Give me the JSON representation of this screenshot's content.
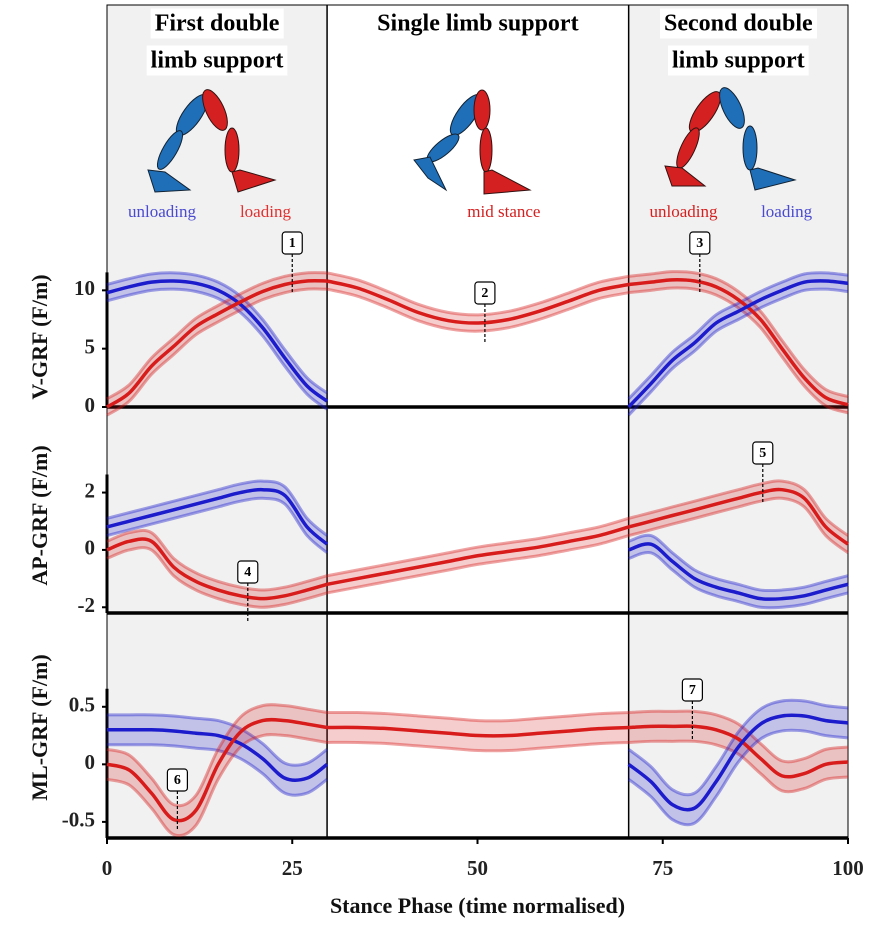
{
  "phases": [
    {
      "lines": [
        "First double",
        "limb support"
      ],
      "start": 0,
      "end": 29.7,
      "shaded": true,
      "notes": [
        {
          "text": "unloading",
          "color": "#4a4ad0"
        },
        {
          "text": "loading",
          "color": "#e03030"
        }
      ]
    },
    {
      "lines": [
        "Single limb support"
      ],
      "start": 29.7,
      "end": 70.4,
      "shaded": false,
      "notes": [
        {
          "text": "mid stance",
          "color": "#d42020"
        }
      ]
    },
    {
      "lines": [
        "Second double",
        "limb support"
      ],
      "start": 70.4,
      "end": 100,
      "shaded": true,
      "notes": [
        {
          "text": "unloading",
          "color": "#d42020"
        },
        {
          "text": "loading",
          "color": "#4a4ad0"
        }
      ]
    }
  ],
  "chart_data": [
    {
      "type": "line",
      "ylabel": "V-GRF (F/m)",
      "xlim": [
        0,
        100
      ],
      "ylim": [
        0,
        12
      ],
      "yticks": [
        0,
        5,
        10
      ],
      "annotations": [
        {
          "label": "1",
          "x": 25
        },
        {
          "label": "2",
          "x": 51
        },
        {
          "label": "3",
          "x": 80
        }
      ],
      "series": [
        {
          "color": "#1c1ccc",
          "band": 0.7,
          "x": [
            0,
            3,
            6,
            9,
            12,
            15,
            18,
            21,
            24,
            27,
            29.7
          ],
          "values": [
            9.8,
            10.3,
            10.7,
            10.8,
            10.6,
            10,
            8.8,
            6.8,
            4.2,
            1.8,
            0.5
          ]
        },
        {
          "color": "#d81c1c",
          "band": 0.7,
          "x": [
            0,
            3,
            6,
            9,
            12,
            15,
            18,
            21,
            24,
            27,
            29.7
          ],
          "values": [
            0,
            1.2,
            3.5,
            5.2,
            6.9,
            8,
            9,
            9.9,
            10.5,
            10.8,
            10.8
          ]
        },
        {
          "color": "#d81c1c",
          "band": 0.7,
          "x": [
            29.7,
            33.8,
            37.9,
            42,
            46.1,
            50.1,
            54.2,
            58.3,
            62.4,
            66.4,
            70.4
          ],
          "values": [
            10.8,
            10.2,
            9.2,
            8.1,
            7.4,
            7.2,
            7.5,
            8.2,
            9.1,
            10,
            10.5
          ]
        },
        {
          "color": "#d81c1c",
          "band": 0.7,
          "x": [
            70.4,
            73.4,
            76.3,
            79.3,
            82.2,
            85.2,
            88.2,
            91.1,
            94.1,
            97,
            100
          ],
          "values": [
            10.5,
            10.7,
            10.9,
            10.8,
            10.3,
            9.2,
            7.5,
            5,
            2.5,
            0.8,
            0.2
          ]
        },
        {
          "color": "#1c1ccc",
          "band": 0.7,
          "x": [
            70.4,
            73.4,
            76.3,
            79.3,
            82.2,
            85.2,
            88.2,
            91.1,
            94.1,
            97,
            100
          ],
          "values": [
            0,
            2,
            4,
            5.5,
            7.2,
            8.2,
            9.2,
            10,
            10.7,
            10.8,
            10.6
          ]
        }
      ]
    },
    {
      "type": "line",
      "ylabel": "AP-GRF (F/m)",
      "xlim": [
        0,
        100
      ],
      "ylim": [
        -2.2,
        4.6
      ],
      "yticks": [
        -2,
        0,
        2
      ],
      "annotations": [
        {
          "label": "4",
          "x": 19
        },
        {
          "label": "5",
          "x": 88.5
        }
      ],
      "series": [
        {
          "color": "#1c1ccc",
          "band": 0.3,
          "x": [
            0,
            3,
            6,
            9,
            12,
            15,
            18,
            21,
            24,
            27,
            29.7
          ],
          "values": [
            0.8,
            1,
            1.2,
            1.4,
            1.6,
            1.8,
            2,
            2.1,
            1.9,
            0.8,
            0.2
          ]
        },
        {
          "color": "#d81c1c",
          "band": 0.3,
          "x": [
            0,
            3,
            6,
            9,
            12,
            15,
            18,
            21,
            24,
            27,
            29.7
          ],
          "values": [
            0,
            0.3,
            0.3,
            -0.6,
            -1.1,
            -1.4,
            -1.6,
            -1.7,
            -1.6,
            -1.4,
            -1.2
          ]
        },
        {
          "color": "#d81c1c",
          "band": 0.3,
          "x": [
            29.7,
            33.8,
            37.9,
            42,
            46.1,
            50.1,
            54.2,
            58.3,
            62.4,
            66.4,
            70.4
          ],
          "values": [
            -1.2,
            -1,
            -0.8,
            -0.6,
            -0.4,
            -0.2,
            -0.05,
            0.1,
            0.3,
            0.5,
            0.8
          ]
        },
        {
          "color": "#d81c1c",
          "band": 0.3,
          "x": [
            70.4,
            73.4,
            76.3,
            79.3,
            82.2,
            85.2,
            88.2,
            91.1,
            94.1,
            97,
            100
          ],
          "values": [
            0.8,
            1,
            1.2,
            1.4,
            1.6,
            1.8,
            2,
            2.1,
            1.8,
            0.8,
            0.2
          ]
        },
        {
          "color": "#1c1ccc",
          "band": 0.3,
          "x": [
            70.4,
            73.4,
            76.3,
            79.3,
            82.2,
            85.2,
            88.2,
            91.1,
            94.1,
            97,
            100
          ],
          "values": [
            0,
            0.2,
            -0.4,
            -1,
            -1.3,
            -1.5,
            -1.7,
            -1.7,
            -1.6,
            -1.4,
            -1.2
          ]
        }
      ]
    },
    {
      "type": "line",
      "ylabel": "ML-GRF (F/m)",
      "xlim": [
        0,
        100
      ],
      "ylim": [
        -0.64,
        1.28
      ],
      "yticks": [
        -0.5,
        0,
        0.5
      ],
      "xticks": [
        0,
        25,
        50,
        75,
        100
      ],
      "xlabel": "Stance Phase (time normalised)",
      "annotations": [
        {
          "label": "6",
          "x": 9.5
        },
        {
          "label": "7",
          "x": 79
        }
      ],
      "series": [
        {
          "color": "#1c1ccc",
          "band": 0.13,
          "x": [
            0,
            3,
            6,
            9,
            12,
            15,
            18,
            21,
            24,
            27,
            29.7
          ],
          "values": [
            0.3,
            0.3,
            0.3,
            0.29,
            0.27,
            0.25,
            0.18,
            0.05,
            -0.12,
            -0.12,
            0
          ]
        },
        {
          "color": "#d81c1c",
          "band": 0.13,
          "x": [
            0,
            3,
            6,
            9,
            12,
            15,
            18,
            21,
            24,
            27,
            29.7
          ],
          "values": [
            0,
            -0.05,
            -0.25,
            -0.48,
            -0.4,
            0,
            0.28,
            0.38,
            0.38,
            0.35,
            0.32
          ]
        },
        {
          "color": "#d81c1c",
          "band": 0.13,
          "x": [
            29.7,
            33.8,
            37.9,
            42,
            46.1,
            50.1,
            54.2,
            58.3,
            62.4,
            66.4,
            70.4
          ],
          "values": [
            0.32,
            0.32,
            0.31,
            0.29,
            0.27,
            0.25,
            0.25,
            0.27,
            0.29,
            0.31,
            0.32
          ]
        },
        {
          "color": "#d81c1c",
          "band": 0.13,
          "x": [
            70.4,
            73.4,
            76.3,
            79.3,
            82.2,
            85.2,
            88.2,
            91.1,
            94.1,
            97,
            100
          ],
          "values": [
            0.32,
            0.33,
            0.33,
            0.33,
            0.3,
            0.22,
            0.05,
            -0.1,
            -0.08,
            0,
            0.02
          ]
        },
        {
          "color": "#1c1ccc",
          "band": 0.13,
          "x": [
            70.4,
            73.4,
            76.3,
            79.3,
            82.2,
            85.2,
            88.2,
            91.1,
            94.1,
            97,
            100
          ],
          "values": [
            0,
            -0.15,
            -0.35,
            -0.38,
            -0.15,
            0.15,
            0.35,
            0.42,
            0.42,
            0.38,
            0.36
          ]
        }
      ]
    }
  ]
}
